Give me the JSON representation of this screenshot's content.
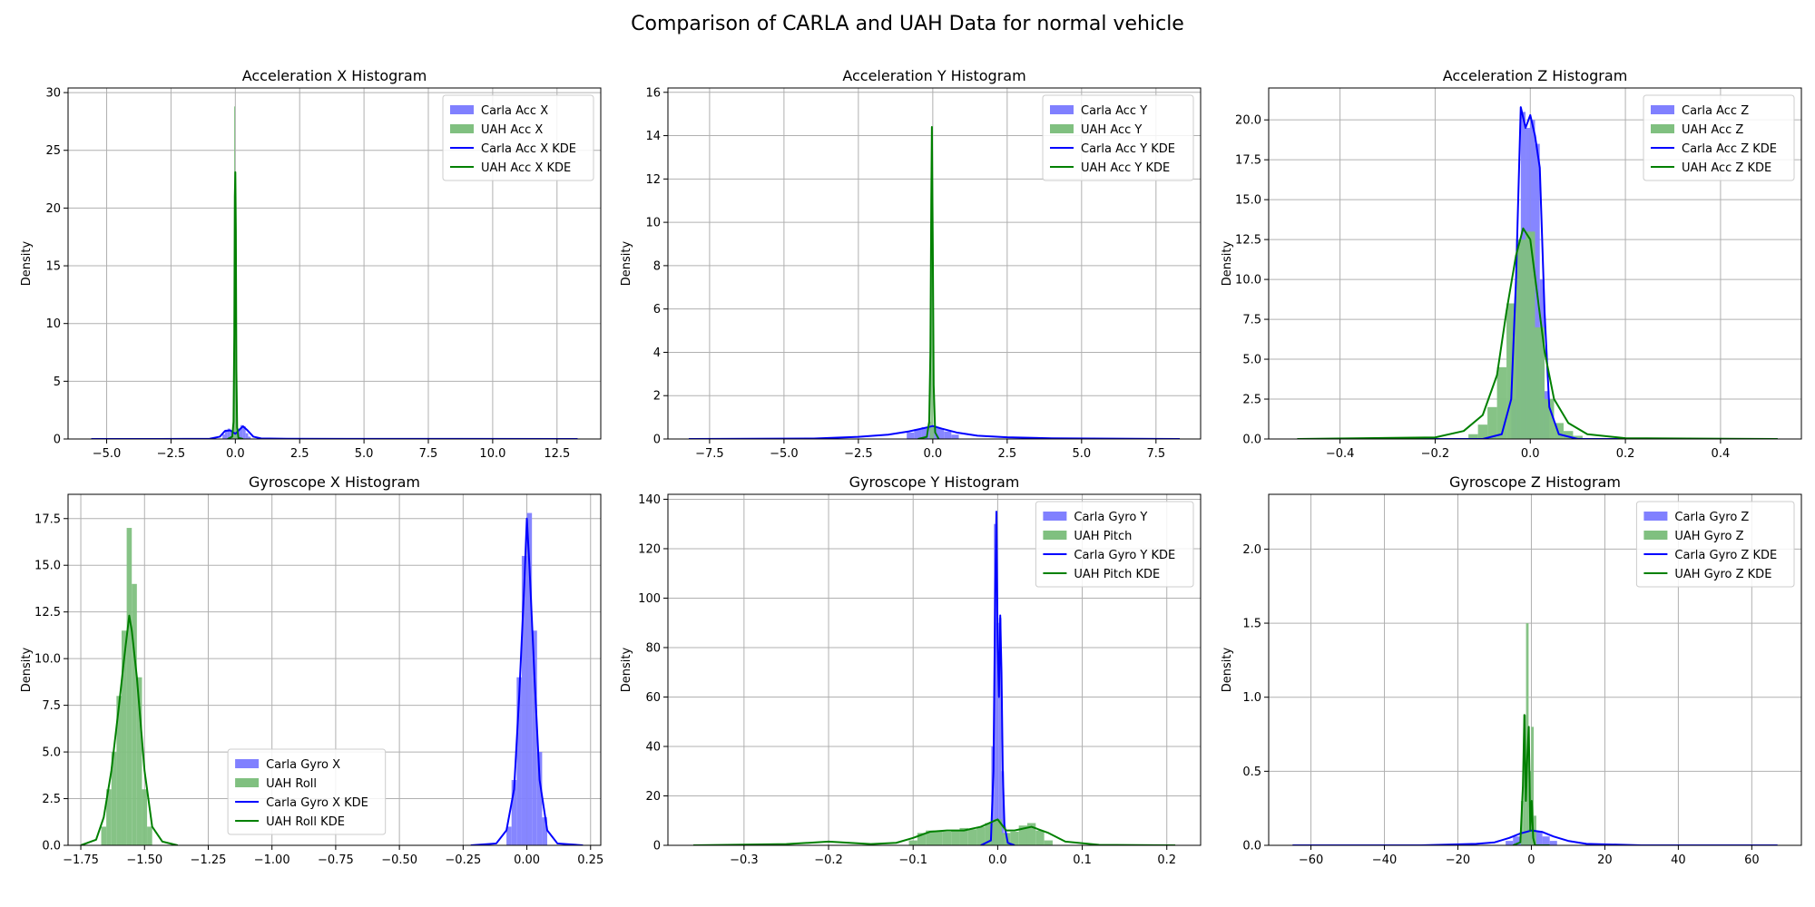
{
  "figure": {
    "title": "Comparison of CARLA and UAH Data for normal vehicle"
  },
  "colors": {
    "carla": "#0000ff",
    "uah": "#008000",
    "carla_fill": "#8080ff",
    "uah_fill": "#80c080",
    "grid": "#b0b0b0"
  },
  "chart_data": [
    {
      "type": "histogram-kde",
      "title": "Acceleration X Histogram",
      "ylabel": "Density",
      "xlim": [
        -6.5,
        14.2
      ],
      "ylim": [
        0,
        30.4
      ],
      "xticks": [
        -5.0,
        -2.5,
        0.0,
        2.5,
        5.0,
        7.5,
        10.0,
        12.5
      ],
      "yticks": [
        0,
        5,
        10,
        15,
        20,
        25,
        30
      ],
      "legend": {
        "position": "top-right",
        "labels": [
          "Carla Acc X",
          "UAH Acc X",
          "Carla Acc X KDE",
          "UAH Acc X KDE"
        ]
      },
      "series": [
        {
          "name": "Carla Acc X",
          "kind": "hist",
          "color": "carla",
          "x": [
            -0.45,
            -0.35,
            -0.25,
            -0.15,
            -0.05,
            0.05,
            0.15,
            0.25,
            0.35,
            0.45,
            0.55
          ],
          "values": [
            0.4,
            0.8,
            0.9,
            0.7,
            0.5,
            0.6,
            0.9,
            1.2,
            1.1,
            0.5,
            0.2
          ]
        },
        {
          "name": "UAH Acc X",
          "kind": "hist",
          "color": "uah",
          "x": [
            -0.12,
            -0.09,
            -0.06,
            -0.03,
            0.0,
            0.03,
            0.06
          ],
          "values": [
            0.3,
            1.2,
            6.5,
            28.8,
            23.0,
            4.5,
            0.6
          ]
        },
        {
          "name": "Carla Acc X KDE",
          "kind": "kde",
          "color": "carla",
          "x": [
            -5.6,
            -3,
            -1,
            -0.6,
            -0.4,
            -0.2,
            0.0,
            0.2,
            0.3,
            0.45,
            0.7,
            1.0,
            2.0,
            5.0,
            13.3
          ],
          "values": [
            0.0,
            0.0,
            0.02,
            0.2,
            0.7,
            0.75,
            0.45,
            0.9,
            1.1,
            0.8,
            0.2,
            0.05,
            0.02,
            0.01,
            0.0
          ]
        },
        {
          "name": "UAH Acc X KDE",
          "kind": "kde",
          "color": "uah",
          "x": [
            -0.3,
            -0.12,
            -0.07,
            -0.04,
            -0.02,
            0.0,
            0.02,
            0.04,
            0.07,
            0.12,
            0.3
          ],
          "values": [
            0.0,
            0.2,
            1.5,
            9.0,
            21.0,
            23.1,
            18.0,
            6.0,
            1.0,
            0.1,
            0.0
          ]
        }
      ]
    },
    {
      "type": "histogram-kde",
      "title": "Acceleration Y Histogram",
      "ylabel": "Density",
      "xlim": [
        -8.9,
        9.0
      ],
      "ylim": [
        0,
        16.2
      ],
      "xticks": [
        -7.5,
        -5.0,
        -2.5,
        0.0,
        2.5,
        5.0,
        7.5
      ],
      "yticks": [
        0,
        2,
        4,
        6,
        8,
        10,
        12,
        14,
        16
      ],
      "legend": {
        "position": "top-right",
        "labels": [
          "Carla Acc Y",
          "UAH Acc Y",
          "Carla Acc Y KDE",
          "UAH Acc Y KDE"
        ]
      },
      "series": [
        {
          "name": "Carla Acc Y",
          "kind": "hist",
          "color": "carla",
          "x": [
            -0.75,
            -0.5,
            -0.25,
            0.0,
            0.25,
            0.5,
            0.75
          ],
          "values": [
            0.3,
            0.45,
            0.55,
            0.6,
            0.5,
            0.35,
            0.2
          ]
        },
        {
          "name": "UAH Acc Y",
          "kind": "hist",
          "color": "uah",
          "x": [
            -0.09,
            -0.06,
            -0.03,
            0.0,
            0.03
          ],
          "values": [
            0.8,
            6.0,
            14.4,
            5.0,
            0.6
          ]
        },
        {
          "name": "Carla Acc Y KDE",
          "kind": "kde",
          "color": "carla",
          "x": [
            -8.2,
            -4,
            -2.5,
            -1.5,
            -0.8,
            -0.3,
            0.0,
            0.3,
            0.8,
            1.5,
            2.5,
            4,
            8.3
          ],
          "values": [
            0.0,
            0.02,
            0.1,
            0.2,
            0.35,
            0.5,
            0.6,
            0.48,
            0.3,
            0.15,
            0.08,
            0.03,
            0.0
          ]
        },
        {
          "name": "UAH Acc Y KDE",
          "kind": "kde",
          "color": "uah",
          "x": [
            -0.5,
            -0.2,
            -0.12,
            -0.08,
            -0.05,
            -0.03,
            0.0,
            0.03,
            0.08,
            0.2
          ],
          "values": [
            0.0,
            0.1,
            0.8,
            4.0,
            11.0,
            14.4,
            9.0,
            2.5,
            0.3,
            0.0
          ]
        }
      ]
    },
    {
      "type": "histogram-kde",
      "title": "Acceleration Z Histogram",
      "ylabel": "Density",
      "xlim": [
        -0.55,
        0.57
      ],
      "ylim": [
        0,
        22.0
      ],
      "xticks": [
        -0.4,
        -0.2,
        0.0,
        0.2,
        0.4
      ],
      "yticks": [
        0.0,
        2.5,
        5.0,
        7.5,
        10.0,
        12.5,
        15.0,
        17.5,
        20.0
      ],
      "legend": {
        "position": "top-right",
        "labels": [
          "Carla Acc Z",
          "UAH Acc Z",
          "Carla Acc Z KDE",
          "UAH Acc Z KDE"
        ]
      },
      "series": [
        {
          "name": "Carla Acc Z",
          "kind": "hist",
          "color": "carla",
          "x": [
            -0.035,
            -0.025,
            -0.015,
            -0.005,
            0.005,
            0.015,
            0.025,
            0.035
          ],
          "values": [
            2.5,
            12.0,
            20.5,
            19.5,
            20.0,
            18.5,
            10.0,
            3.0
          ]
        },
        {
          "name": "UAH Acc Z",
          "kind": "hist",
          "color": "uah",
          "x": [
            -0.12,
            -0.1,
            -0.08,
            -0.06,
            -0.04,
            -0.02,
            0.0,
            0.02,
            0.04,
            0.06,
            0.08,
            0.1
          ],
          "values": [
            0.3,
            0.9,
            2.0,
            4.5,
            8.5,
            12.5,
            13.0,
            7.0,
            2.5,
            1.0,
            0.5,
            0.2
          ]
        },
        {
          "name": "Carla Acc Z KDE",
          "kind": "kde",
          "color": "carla",
          "x": [
            -0.49,
            -0.1,
            -0.06,
            -0.04,
            -0.03,
            -0.02,
            -0.01,
            0.0,
            0.01,
            0.02,
            0.03,
            0.04,
            0.06,
            0.1,
            0.52
          ],
          "values": [
            0.0,
            0.0,
            0.3,
            2.5,
            10.0,
            20.8,
            19.5,
            20.3,
            19.0,
            17.0,
            8.0,
            2.0,
            0.3,
            0.0,
            0.0
          ]
        },
        {
          "name": "UAH Acc Z KDE",
          "kind": "kde",
          "color": "uah",
          "x": [
            -0.49,
            -0.2,
            -0.14,
            -0.1,
            -0.07,
            -0.05,
            -0.03,
            -0.015,
            0.0,
            0.015,
            0.03,
            0.05,
            0.08,
            0.12,
            0.2,
            0.52
          ],
          "values": [
            0.0,
            0.1,
            0.5,
            1.5,
            4.0,
            8.0,
            11.5,
            13.2,
            12.5,
            9.0,
            5.5,
            2.5,
            1.0,
            0.3,
            0.05,
            0.0
          ]
        }
      ]
    },
    {
      "type": "histogram-kde",
      "title": "Gyroscope X Histogram",
      "ylabel": "Density",
      "xlim": [
        -1.8,
        0.29
      ],
      "ylim": [
        0,
        18.8
      ],
      "xticks": [
        -1.75,
        -1.5,
        -1.25,
        -1.0,
        -0.75,
        -0.5,
        -0.25,
        0.0,
        0.25
      ],
      "yticks": [
        0.0,
        2.5,
        5.0,
        7.5,
        10.0,
        12.5,
        15.0,
        17.5
      ],
      "legend": {
        "position": "lower-center",
        "labels": [
          "Carla Gyro X",
          "UAH Roll",
          "Carla Gyro X KDE",
          "UAH Roll KDE"
        ]
      },
      "series": [
        {
          "name": "Carla Gyro X",
          "kind": "hist",
          "color": "carla",
          "x": [
            -0.07,
            -0.05,
            -0.03,
            -0.01,
            0.01,
            0.03,
            0.05,
            0.07
          ],
          "values": [
            1.0,
            3.5,
            9.0,
            15.5,
            17.8,
            11.5,
            5.0,
            1.5
          ]
        },
        {
          "name": "UAH Roll",
          "kind": "hist",
          "color": "uah",
          "x": [
            -1.66,
            -1.64,
            -1.62,
            -1.6,
            -1.58,
            -1.56,
            -1.54,
            -1.52,
            -1.5,
            -1.48
          ],
          "values": [
            1.0,
            3.0,
            5.0,
            8.0,
            11.5,
            17.0,
            14.0,
            9.0,
            3.0,
            1.0
          ]
        },
        {
          "name": "Carla Gyro X KDE",
          "kind": "kde",
          "color": "carla",
          "x": [
            -0.22,
            -0.12,
            -0.08,
            -0.05,
            -0.03,
            -0.01,
            0.0,
            0.01,
            0.03,
            0.05,
            0.08,
            0.12,
            0.22
          ],
          "values": [
            0.0,
            0.1,
            0.8,
            3.0,
            8.0,
            14.0,
            17.5,
            15.0,
            9.0,
            3.5,
            0.8,
            0.1,
            0.0
          ]
        },
        {
          "name": "UAH Roll KDE",
          "kind": "kde",
          "color": "uah",
          "x": [
            -1.75,
            -1.69,
            -1.66,
            -1.63,
            -1.6,
            -1.58,
            -1.56,
            -1.55,
            -1.53,
            -1.5,
            -1.47,
            -1.43,
            -1.37
          ],
          "values": [
            0.0,
            0.3,
            1.5,
            4.0,
            7.5,
            10.0,
            12.3,
            11.5,
            9.0,
            4.0,
            1.0,
            0.2,
            0.0
          ]
        }
      ]
    },
    {
      "type": "histogram-kde",
      "title": "Gyroscope Y Histogram",
      "ylabel": "Density",
      "xlim": [
        -0.39,
        0.24
      ],
      "ylim": [
        0,
        142.0
      ],
      "xticks": [
        -0.3,
        -0.2,
        -0.1,
        0.0,
        0.1,
        0.2
      ],
      "yticks": [
        0,
        20,
        40,
        60,
        80,
        100,
        120,
        140
      ],
      "legend": {
        "position": "top-right",
        "labels": [
          "Carla Gyro Y",
          "UAH Pitch",
          "Carla Gyro Y KDE",
          "UAH Pitch KDE"
        ]
      },
      "series": [
        {
          "name": "Carla Gyro Y",
          "kind": "hist",
          "color": "carla",
          "x": [
            -0.006,
            -0.003,
            0.0,
            0.003,
            0.006
          ],
          "values": [
            40.0,
            130.0,
            90.0,
            92.0,
            30.0
          ]
        },
        {
          "name": "UAH Pitch",
          "kind": "hist",
          "color": "uah",
          "x": [
            -0.1,
            -0.09,
            -0.08,
            -0.07,
            -0.06,
            -0.05,
            -0.04,
            -0.03,
            -0.02,
            -0.01,
            0.0,
            0.01,
            0.02,
            0.03,
            0.04,
            0.05,
            0.06
          ],
          "values": [
            2.0,
            5.0,
            6.0,
            5.5,
            5.5,
            6.0,
            7.0,
            6.5,
            7.5,
            9.0,
            10.5,
            5.0,
            5.5,
            8.0,
            9.0,
            6.0,
            2.0
          ]
        },
        {
          "name": "Carla Gyro Y KDE",
          "kind": "kde",
          "color": "carla",
          "x": [
            -0.02,
            -0.008,
            -0.005,
            -0.003,
            -0.0015,
            0.0,
            0.0015,
            0.003,
            0.0045,
            0.006,
            0.008,
            0.012,
            0.02
          ],
          "values": [
            0.0,
            2.0,
            30.0,
            100.0,
            135.0,
            80.0,
            60.0,
            93.0,
            70.0,
            30.0,
            8.0,
            1.0,
            0.0
          ]
        },
        {
          "name": "UAH Pitch KDE",
          "kind": "kde",
          "color": "uah",
          "x": [
            -0.36,
            -0.25,
            -0.2,
            -0.15,
            -0.12,
            -0.1,
            -0.08,
            -0.06,
            -0.04,
            -0.02,
            0.0,
            0.01,
            0.02,
            0.04,
            0.06,
            0.08,
            0.12,
            0.21
          ],
          "values": [
            0.0,
            0.5,
            1.5,
            0.5,
            1.0,
            3.0,
            5.5,
            6.0,
            6.0,
            7.5,
            10.5,
            6.0,
            6.0,
            7.5,
            5.0,
            1.5,
            0.2,
            0.0
          ]
        }
      ]
    },
    {
      "type": "histogram-kde",
      "title": "Gyroscope Z Histogram",
      "ylabel": "Density",
      "xlim": [
        -71.5,
        73.5
      ],
      "ylim": [
        0,
        2.37
      ],
      "xticks": [
        -60,
        -40,
        -20,
        0,
        20,
        40,
        60
      ],
      "yticks": [
        0.0,
        0.5,
        1.0,
        1.5,
        2.0
      ],
      "legend": {
        "position": "top-right",
        "labels": [
          "Carla Gyro Z",
          "UAH Gyro Z",
          "Carla Gyro Z KDE",
          "UAH Gyro Z KDE"
        ]
      },
      "series": [
        {
          "name": "Carla Gyro Z",
          "kind": "hist",
          "color": "carla",
          "x": [
            -6,
            -4,
            -2,
            0,
            2,
            4,
            6
          ],
          "values": [
            0.03,
            0.06,
            0.09,
            0.11,
            0.09,
            0.06,
            0.03
          ]
        },
        {
          "name": "UAH Gyro Z",
          "kind": "hist",
          "color": "uah",
          "x": [
            -2.5,
            -1.8,
            -1.1,
            -0.4,
            0.3,
            1.0
          ],
          "values": [
            0.3,
            0.88,
            1.5,
            0.5,
            0.8,
            0.2
          ]
        },
        {
          "name": "Carla Gyro Z KDE",
          "kind": "kde",
          "color": "carla",
          "x": [
            -65,
            -30,
            -15,
            -10,
            -6,
            -3,
            0,
            3,
            6,
            10,
            15,
            30,
            67
          ],
          "values": [
            0.0,
            0.0,
            0.01,
            0.02,
            0.05,
            0.08,
            0.1,
            0.09,
            0.06,
            0.03,
            0.01,
            0.0,
            0.0
          ]
        },
        {
          "name": "UAH Gyro Z KDE",
          "kind": "kde",
          "color": "uah",
          "x": [
            -5,
            -3,
            -2.3,
            -1.9,
            -1.5,
            -1.1,
            -0.7,
            -0.3,
            0.1,
            0.5,
            1.0,
            2,
            5
          ],
          "values": [
            0.0,
            0.02,
            0.4,
            0.88,
            0.3,
            0.6,
            0.8,
            0.1,
            0.3,
            0.05,
            0.0,
            0.0,
            0.0
          ]
        }
      ]
    }
  ]
}
